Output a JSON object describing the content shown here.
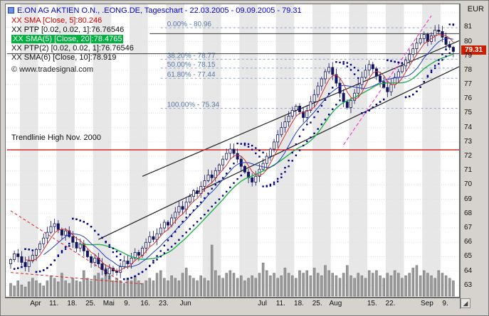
{
  "window": {
    "title": "E.ON AG AKTIEN O.N., .EONG.DE, Tageschart - 22.03.2005 - 09.09.2005 - 79.31"
  },
  "legend": {
    "items": [
      {
        "label": "XX SMA [Close, 5]:80.246",
        "color": "#cc0000",
        "highlight": false
      },
      {
        "label": "XX PTP [0.02, 0.02, 1]:76.76546",
        "color": "#111111",
        "highlight": false
      },
      {
        "label": "XX SMA(5) [Close, 20]:78.4765",
        "color": "#ffffff",
        "highlight": true,
        "highlight_bg": "#00b140",
        "highlight_color": "#ffffff"
      },
      {
        "label": "XX PTP(2) [0.02, 0.02, 1]:76.76546",
        "color": "#111111",
        "highlight": false
      },
      {
        "label": "XX SMA(6) [Close, 10]:78.919",
        "color": "#111111",
        "highlight": false
      }
    ]
  },
  "copyright": "© www.tradesignal.com",
  "annotations": {
    "trendline_label": "Trendlinie High Nov. 2000"
  },
  "y_axis": {
    "unit": "EUR",
    "ticks": [
      81,
      80,
      79,
      78,
      77,
      76,
      75,
      74,
      73,
      72,
      71,
      70,
      69,
      68,
      67,
      66,
      65,
      64,
      63
    ],
    "last_price": "79.31",
    "last_price_value": 79.31
  },
  "x_axis": {
    "labels": [
      {
        "label": "Apr",
        "day": 7
      },
      {
        "label": "11.",
        "day": 12
      },
      {
        "label": "18.",
        "day": 17
      },
      {
        "label": "25.",
        "day": 22
      },
      {
        "label": "Mai",
        "day": 27
      },
      {
        "label": "9.",
        "day": 32
      },
      {
        "label": "16.",
        "day": 37
      },
      {
        "label": "23.",
        "day": 42
      },
      {
        "label": "Jun",
        "day": 48
      },
      {
        "label": "Jul",
        "day": 69
      },
      {
        "label": "11.",
        "day": 74
      },
      {
        "label": "18.",
        "day": 79
      },
      {
        "label": "25.",
        "day": 84
      },
      {
        "label": "Aug",
        "day": 89
      },
      {
        "label": "15.",
        "day": 99
      },
      {
        "label": "22.",
        "day": 104
      },
      {
        "label": "Sep",
        "day": 114
      },
      {
        "label": "9.",
        "day": 119
      }
    ]
  },
  "corner_icon": "◢",
  "chart_data": {
    "type": "candlestick",
    "title": "E.ON AG AKTIEN O.N., .EONG.DE, Tageschart",
    "instrument": "E.ON AG AKTIEN O.N.",
    "symbol": "EONG.DE",
    "period": "Tageschart",
    "date_range": "22.03.2005 - 09.09.2005",
    "last": 79.31,
    "ylim": [
      62.2,
      82.6
    ],
    "closes": [
      64.8,
      65.2,
      65.0,
      64.6,
      64.3,
      64.7,
      65.1,
      65.5,
      65.9,
      66.3,
      66.7,
      67.1,
      67.3,
      66.9,
      66.5,
      66.8,
      66.4,
      66.0,
      65.6,
      65.9,
      65.4,
      65.0,
      64.6,
      64.9,
      64.5,
      64.1,
      63.8,
      64.2,
      64.0,
      63.9,
      64.3,
      64.7,
      64.5,
      64.9,
      65.3,
      65.1,
      65.6,
      66.0,
      66.4,
      66.2,
      66.6,
      67.0,
      67.4,
      67.2,
      67.7,
      68.1,
      68.5,
      68.3,
      68.8,
      69.2,
      69.6,
      69.4,
      69.9,
      70.3,
      70.7,
      70.5,
      71.0,
      71.4,
      71.8,
      72.2,
      72.5,
      72.2,
      71.8,
      71.3,
      70.9,
      70.5,
      70.2,
      70.6,
      71.1,
      71.5,
      72.0,
      72.5,
      73.0,
      73.5,
      74.0,
      74.4,
      74.8,
      75.2,
      75.5,
      75.1,
      74.7,
      75.2,
      75.8,
      76.3,
      76.9,
      77.4,
      77.9,
      78.2,
      77.7,
      77.1,
      76.4,
      75.8,
      75.4,
      75.9,
      76.4,
      77.0,
      77.5,
      78.0,
      78.4,
      78.1,
      77.6,
      77.2,
      76.8,
      76.5,
      77.0,
      77.5,
      77.9,
      78.3,
      78.7,
      79.1,
      79.5,
      79.9,
      80.2,
      80.5,
      80.0,
      80.4,
      80.8,
      80.7,
      80.3,
      79.8,
      79.6,
      79.31
    ],
    "volumes": [
      0.25,
      0.2,
      0.3,
      0.22,
      0.18,
      0.28,
      0.35,
      0.3,
      0.25,
      0.2,
      0.3,
      0.4,
      0.35,
      0.28,
      0.45,
      0.3,
      0.25,
      0.35,
      0.3,
      0.28,
      0.5,
      0.35,
      0.3,
      0.4,
      0.45,
      0.35,
      0.55,
      0.4,
      0.3,
      0.35,
      0.3,
      0.25,
      0.35,
      0.3,
      0.4,
      0.3,
      0.25,
      0.3,
      0.35,
      0.3,
      0.45,
      0.5,
      0.35,
      0.3,
      0.4,
      0.35,
      0.3,
      0.45,
      0.55,
      0.4,
      0.35,
      0.3,
      0.4,
      0.35,
      0.3,
      1.0,
      0.5,
      0.4,
      0.35,
      0.45,
      0.5,
      0.45,
      0.35,
      0.4,
      0.3,
      0.35,
      0.4,
      0.35,
      0.45,
      0.65,
      0.5,
      0.4,
      0.45,
      0.35,
      0.4,
      0.55,
      0.45,
      0.4,
      0.35,
      0.5,
      0.45,
      0.5,
      0.4,
      0.55,
      0.45,
      0.4,
      0.6,
      0.5,
      0.45,
      0.4,
      0.35,
      0.45,
      0.6,
      0.4,
      0.35,
      0.45,
      0.4,
      0.35,
      0.5,
      0.45,
      0.5,
      0.4,
      0.35,
      0.45,
      0.4,
      0.5,
      0.45,
      0.35,
      0.4,
      0.45,
      0.55,
      0.6,
      0.4,
      0.5,
      0.45,
      0.4,
      0.35,
      0.5,
      0.45,
      0.4,
      0.35,
      0.3
    ],
    "indicators": [
      {
        "name": "SMA",
        "params": "Close, 5",
        "value": 80.246,
        "color": "#d03030"
      },
      {
        "name": "PTP",
        "params": "0.02, 0.02, 1",
        "value": 76.76546,
        "color": "#000080"
      },
      {
        "name": "SMA(5)",
        "params": "Close, 20",
        "value": 78.4765,
        "color": "#22b14c"
      },
      {
        "name": "PTP(2)",
        "params": "0.02, 0.02, 1",
        "value": 76.76546,
        "color": "#000080"
      },
      {
        "name": "SMA(6)",
        "params": "Close, 10",
        "value": 78.919,
        "color": "#2040c0"
      }
    ],
    "fibonacci": {
      "start_day": 41,
      "levels": [
        {
          "label": "0.00% - 80.96",
          "price": 80.96
        },
        {
          "label": "38.20% - 78.77",
          "price": 78.77
        },
        {
          "label": "50.00% - 78.15",
          "price": 78.15
        },
        {
          "label": "61.80% - 77.44",
          "price": 77.44
        },
        {
          "label": "100.00% - 75.34",
          "price": 75.34
        }
      ]
    },
    "lines": [
      {
        "name": "trend-channel-lower",
        "x1": 24,
        "p1": 66.2,
        "x2": 123,
        "p2": 78.3,
        "color": "#222222",
        "width": 1.2,
        "dash": ""
      },
      {
        "name": "trend-channel-upper",
        "x1": 36,
        "p1": 70.6,
        "x2": 123,
        "p2": 80.1,
        "color": "#222222",
        "width": 1.2,
        "dash": ""
      },
      {
        "name": "trendlinie-high-nov-2000",
        "x1": -1,
        "p1": 72.45,
        "x2": 123,
        "p2": 72.45,
        "color": "#d42a2a",
        "width": 1.4,
        "dash": ""
      },
      {
        "name": "horizontal-resistance-1",
        "x1": -1,
        "p1": 79.15,
        "x2": 123,
        "p2": 79.15,
        "color": "#3a3a3a",
        "width": 1,
        "dash": ""
      },
      {
        "name": "horizontal-resistance-2",
        "x1": 38,
        "p1": 80.55,
        "x2": 123,
        "p2": 80.55,
        "color": "#3a3a3a",
        "width": 1,
        "dash": ""
      },
      {
        "name": "uptrend-pink-dashed",
        "x1": 91,
        "p1": 72.8,
        "x2": 115,
        "p2": 81.8,
        "color": "#ee44cc",
        "width": 1.2,
        "dash": "5,3"
      },
      {
        "name": "downtrend-red-dashed-1",
        "x1": 0,
        "p1": 68.2,
        "x2": 30,
        "p2": 63.3,
        "color": "#dd2222",
        "width": 1,
        "dash": "4,3"
      },
      {
        "name": "downtrend-red-dashed-2",
        "x1": 0,
        "p1": 63.9,
        "x2": 36,
        "p2": 63.1,
        "color": "#dd2222",
        "width": 1,
        "dash": "4,3"
      }
    ],
    "colors": {
      "candle": "#14145f",
      "sma5": "#d03030",
      "sma10": "#2040c0",
      "sma20": "#22b14c",
      "psar": "#000080",
      "volume": "#9b9b9b",
      "volume_edge": "#6a6a6a",
      "stripe": "#e7e7e7",
      "fib_line": "#90a4c8",
      "fib_label": "#5878a8",
      "grid": "#e0e0e0"
    }
  }
}
